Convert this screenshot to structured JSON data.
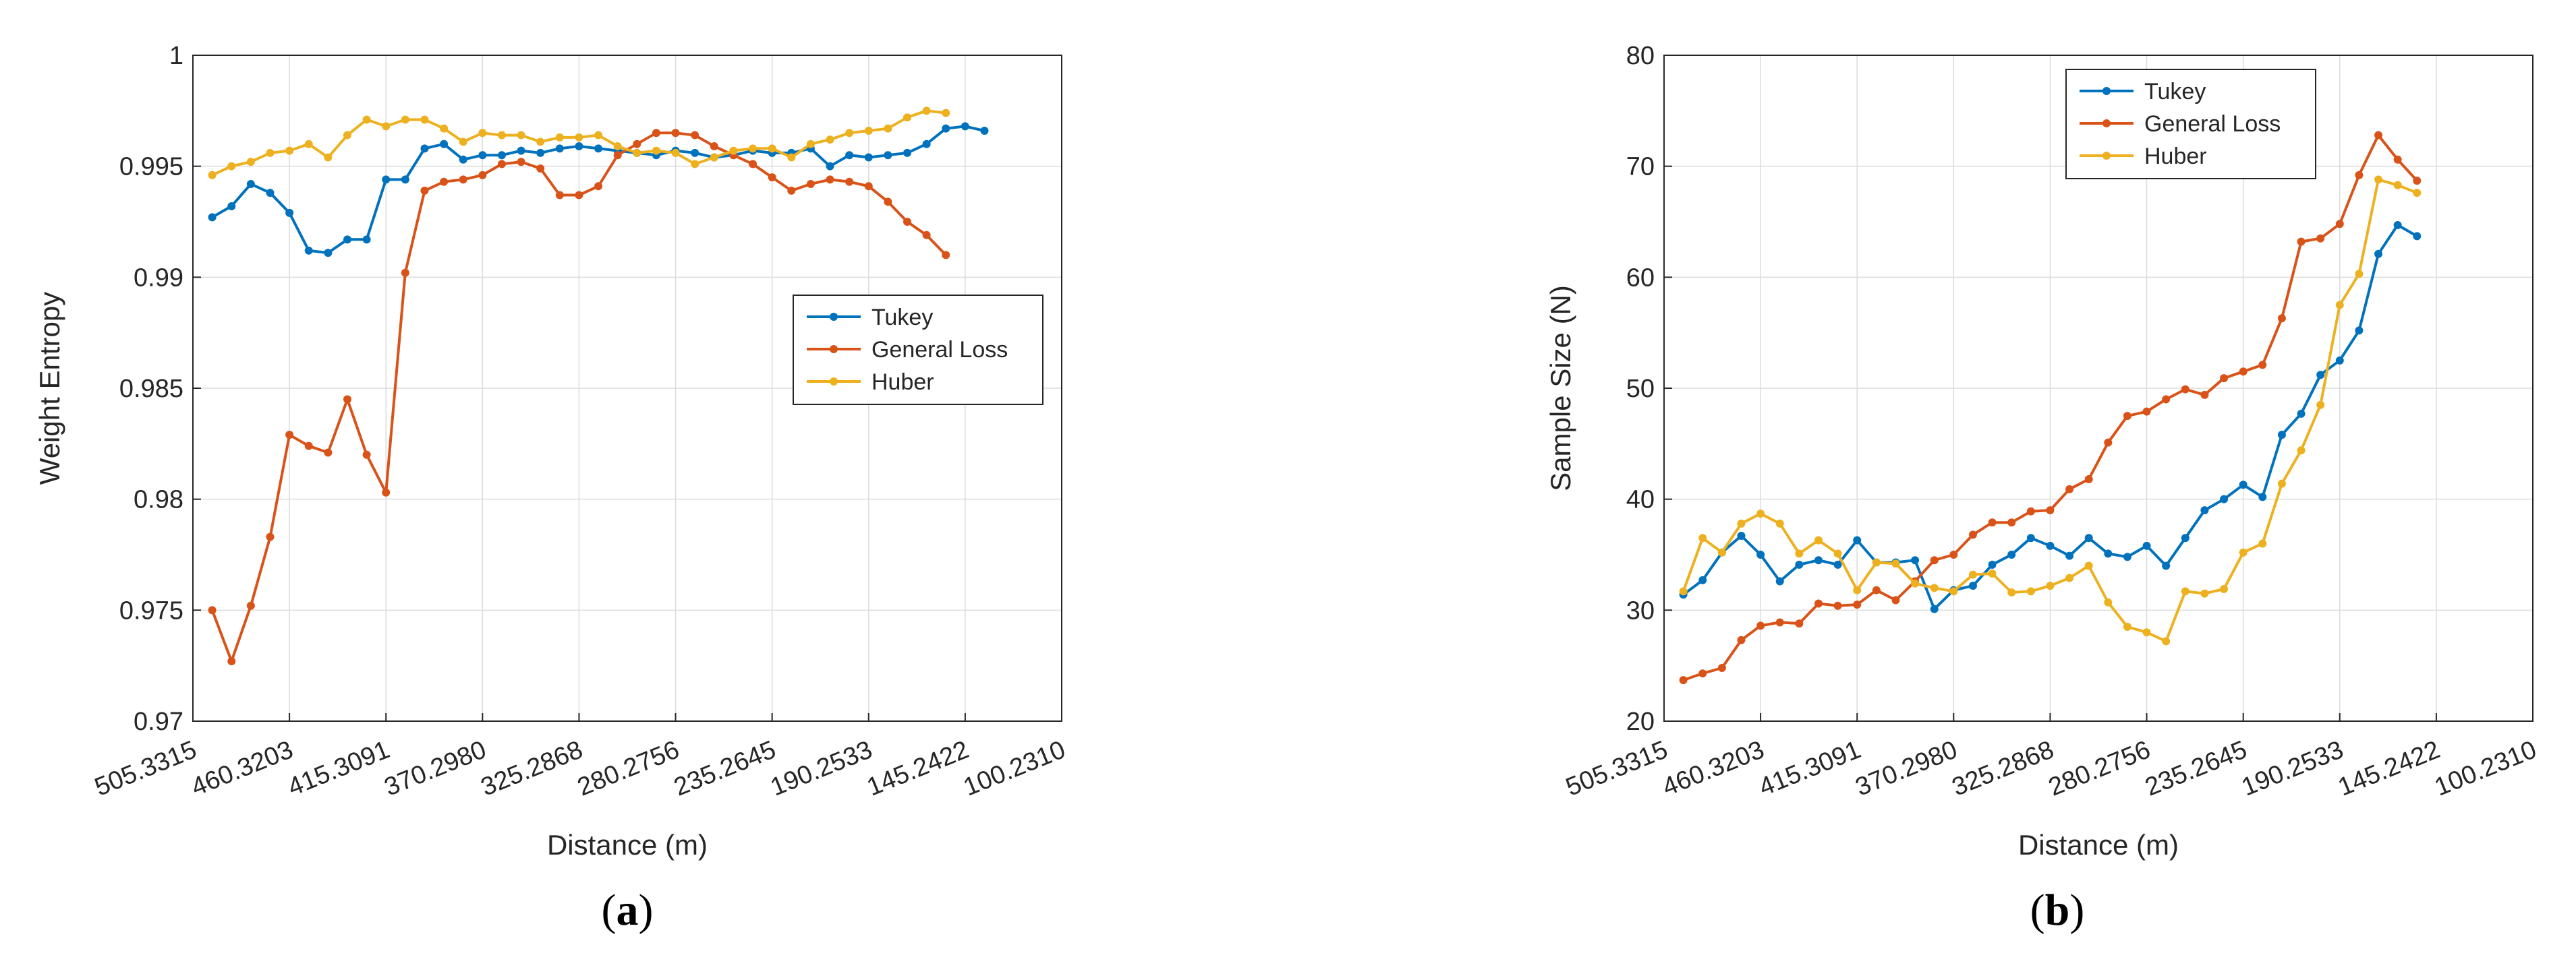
{
  "colors": {
    "tukey": "#0072BD",
    "general_loss": "#D95319",
    "huber": "#EDB120"
  },
  "chart_data": [
    {
      "type": "line",
      "panel_label": "a",
      "xlabel": "Distance (m)",
      "ylabel": "Weight Entropy",
      "ylim": [
        0.97,
        1.0
      ],
      "yticks": [
        0.97,
        0.975,
        0.98,
        0.985,
        0.99,
        0.995,
        1.0
      ],
      "ytick_labels": [
        "0.97",
        "0.975",
        "0.98",
        "0.985",
        "0.99",
        "0.995",
        "1"
      ],
      "xticks": [
        0,
        5,
        10,
        15,
        20,
        25,
        30,
        35,
        40,
        45
      ],
      "xtick_labels": [
        "505.3315",
        "460.3203",
        "415.3091",
        "370.2980",
        "325.2868",
        "280.2756",
        "235.2645",
        "190.2533",
        "145.2422",
        "100.2310"
      ],
      "xlim": [
        0,
        45
      ],
      "grid": true,
      "legend_position": "center-right",
      "series": [
        {
          "name": "Tukey",
          "color_key": "tukey",
          "x_start": 1,
          "values": [
            0.9927,
            0.9932,
            0.9942,
            0.9938,
            0.9929,
            0.9912,
            0.9911,
            0.9917,
            0.9917,
            0.9944,
            0.9944,
            0.9958,
            0.996,
            0.9953,
            0.9955,
            0.9955,
            0.9957,
            0.9956,
            0.9958,
            0.9959,
            0.9958,
            0.9957,
            0.9956,
            0.9955,
            0.9957,
            0.9956,
            0.9954,
            0.9955,
            0.9957,
            0.9956,
            0.9956,
            0.9958,
            0.995,
            0.9955,
            0.9954,
            0.9955,
            0.9956,
            0.996,
            0.9967,
            0.9968,
            0.9966
          ]
        },
        {
          "name": "General Loss",
          "color_key": "general_loss",
          "x_start": 1,
          "values": [
            0.975,
            0.9727,
            0.9752,
            0.9783,
            0.9829,
            0.9824,
            0.9821,
            0.9845,
            0.982,
            0.9803,
            0.9902,
            0.9939,
            0.9943,
            0.9944,
            0.9946,
            0.9951,
            0.9952,
            0.9949,
            0.9937,
            0.9937,
            0.9941,
            0.9955,
            0.996,
            0.9965,
            0.9965,
            0.9964,
            0.9959,
            0.9955,
            0.9951,
            0.9945,
            0.9939,
            0.9942,
            0.9944,
            0.9943,
            0.9941,
            0.9934,
            0.9925,
            0.9919,
            0.991
          ]
        },
        {
          "name": "Huber",
          "color_key": "huber",
          "x_start": 1,
          "values": [
            0.9946,
            0.995,
            0.9952,
            0.9956,
            0.9957,
            0.996,
            0.9954,
            0.9964,
            0.9971,
            0.9968,
            0.9971,
            0.9971,
            0.9967,
            0.9961,
            0.9965,
            0.9964,
            0.9964,
            0.9961,
            0.9963,
            0.9963,
            0.9964,
            0.9959,
            0.9956,
            0.9957,
            0.9956,
            0.9951,
            0.9954,
            0.9957,
            0.9958,
            0.9958,
            0.9954,
            0.996,
            0.9962,
            0.9965,
            0.9966,
            0.9967,
            0.9972,
            0.9975,
            0.9974
          ]
        }
      ]
    },
    {
      "type": "line",
      "panel_label": "b",
      "xlabel": "Distance (m)",
      "ylabel": "Sample Size (N)",
      "ylim": [
        20,
        80
      ],
      "yticks": [
        20,
        30,
        40,
        50,
        60,
        70,
        80
      ],
      "ytick_labels": [
        "20",
        "30",
        "40",
        "50",
        "60",
        "70",
        "80"
      ],
      "xticks": [
        0,
        5,
        10,
        15,
        20,
        25,
        30,
        35,
        40,
        45
      ],
      "xtick_labels": [
        "505.3315",
        "460.3203",
        "415.3091",
        "370.2980",
        "325.2868",
        "280.2756",
        "235.2645",
        "190.2533",
        "145.2422",
        "100.2310"
      ],
      "xlim": [
        0,
        45
      ],
      "grid": true,
      "legend_position": "top-center",
      "series": [
        {
          "name": "Tukey",
          "color_key": "tukey",
          "x_start": 1,
          "values": [
            31.4,
            32.7,
            35.2,
            36.7,
            35,
            32.6,
            34.1,
            34.5,
            34.1,
            36.3,
            34.3,
            34.3,
            34.5,
            30.1,
            31.8,
            32.2,
            34.1,
            35,
            36.5,
            35.8,
            34.9,
            36.5,
            35.1,
            34.8,
            35.8,
            34,
            36.5,
            39,
            40,
            41.3,
            40.2,
            45.8,
            47.7,
            51.2,
            52.5,
            55.2,
            62.1,
            64.7,
            63.7
          ]
        },
        {
          "name": "General Loss",
          "color_key": "general_loss",
          "x_start": 1,
          "values": [
            23.7,
            24.3,
            24.8,
            27.3,
            28.6,
            28.9,
            28.8,
            30.6,
            30.4,
            30.5,
            31.8,
            30.9,
            32.6,
            34.5,
            35,
            36.8,
            37.9,
            37.9,
            38.9,
            39,
            40.9,
            41.8,
            45.1,
            47.5,
            47.9,
            49,
            49.9,
            49.4,
            50.9,
            51.5,
            52.1,
            56.3,
            63.2,
            63.5,
            64.8,
            69.2,
            72.8,
            70.6,
            68.7
          ]
        },
        {
          "name": "Huber",
          "color_key": "huber",
          "x_start": 1,
          "values": [
            31.7,
            36.5,
            35.2,
            37.8,
            38.7,
            37.8,
            35.1,
            36.3,
            35.1,
            31.8,
            34.3,
            34.2,
            32.4,
            32,
            31.7,
            33.2,
            33.3,
            31.6,
            31.7,
            32.2,
            32.9,
            34,
            30.7,
            28.5,
            28,
            27.2,
            31.7,
            31.5,
            31.9,
            35.2,
            36,
            41.4,
            44.4,
            48.5,
            57.5,
            60.3,
            68.8,
            68.3,
            67.6
          ]
        }
      ]
    }
  ]
}
